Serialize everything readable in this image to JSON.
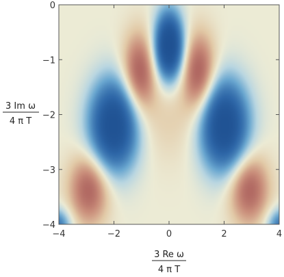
{
  "chart_data": {
    "type": "heatmap",
    "xlabel": {
      "numerator": "3 Re ω",
      "denominator": "4 π T"
    },
    "ylabel": {
      "numerator": "3 Im ω",
      "denominator": "4 π T"
    },
    "xlim": [
      -4,
      4
    ],
    "ylim": [
      -4,
      0
    ],
    "x_ticks": [
      -4,
      -2,
      0,
      2,
      4
    ],
    "y_ticks": [
      0,
      -1,
      -2,
      -3,
      -4
    ],
    "x_tick_labels": [
      "−4",
      "−2",
      "0",
      "2",
      "4"
    ],
    "y_tick_labels": [
      "0",
      "−1",
      "−2",
      "−3",
      "−4"
    ],
    "colormap": {
      "stops": [
        {
          "v": -1.0,
          "color": "#1d4e8f"
        },
        {
          "v": -0.9,
          "color": "#2e67a8"
        },
        {
          "v": -0.6,
          "color": "#6aa7d0"
        },
        {
          "v": -0.3,
          "color": "#b9d6e1"
        },
        {
          "v": 0.0,
          "color": "#ecebd5"
        },
        {
          "v": 0.3,
          "color": "#e2c9a6"
        },
        {
          "v": 0.6,
          "color": "#c98d7a"
        },
        {
          "v": 1.0,
          "color": "#923a44"
        }
      ]
    },
    "features": [
      {
        "kind": "minimum",
        "x": 0.0,
        "y": -0.75,
        "rx": 0.35,
        "ry": 0.42,
        "strength": 2.6
      },
      {
        "kind": "minimum",
        "x": -2.0,
        "y": -2.2,
        "rx": 0.6,
        "ry": 0.56,
        "strength": 2.4
      },
      {
        "kind": "minimum",
        "x": 2.0,
        "y": -2.2,
        "rx": 0.6,
        "ry": 0.56,
        "strength": 2.4
      },
      {
        "kind": "minimum",
        "x": -4.1,
        "y": -4.05,
        "rx": 0.35,
        "ry": 0.22,
        "strength": 1.3
      },
      {
        "kind": "minimum",
        "x": 4.1,
        "y": -4.05,
        "rx": 0.35,
        "ry": 0.22,
        "strength": 1.3
      },
      {
        "kind": "maximum",
        "x": -1.1,
        "y": -1.25,
        "rx": 0.42,
        "ry": 0.5,
        "strength": 1.15
      },
      {
        "kind": "maximum",
        "x": 1.1,
        "y": -1.25,
        "rx": 0.42,
        "ry": 0.5,
        "strength": 1.15
      },
      {
        "kind": "maximum",
        "x": -2.9,
        "y": -3.35,
        "rx": 0.5,
        "ry": 0.45,
        "strength": 1.1
      },
      {
        "kind": "maximum",
        "x": 2.9,
        "y": -3.35,
        "rx": 0.5,
        "ry": 0.45,
        "strength": 1.1
      },
      {
        "kind": "maximum",
        "x": 0.0,
        "y": -2.0,
        "rx": 1.0,
        "ry": 0.6,
        "strength": 0.25
      }
    ]
  }
}
